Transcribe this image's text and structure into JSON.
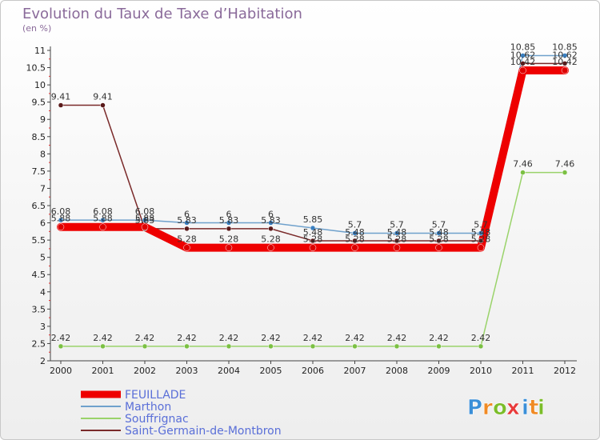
{
  "title": "Evolution du Taux de Taxe d’Habitation",
  "unit": "(en %)",
  "logo": {
    "letters": [
      "P",
      "r",
      "o",
      "x",
      "i",
      "t",
      "i"
    ],
    "colors": [
      "#3a8fd8",
      "#f08a24",
      "#7bbd2a",
      "#e83a3a",
      "#3a8fd8",
      "#f08a24",
      "#7bbd2a"
    ]
  },
  "chart_data": {
    "type": "line",
    "x": [
      2000,
      2001,
      2002,
      2003,
      2004,
      2005,
      2006,
      2007,
      2008,
      2009,
      2010,
      2011,
      2012
    ],
    "ylim": [
      2,
      11
    ],
    "yticks": [
      2,
      2.5,
      3,
      3.5,
      4,
      4.5,
      5,
      5.5,
      6,
      6.5,
      7,
      7.5,
      8,
      8.5,
      9,
      9.5,
      10,
      10.5,
      11
    ],
    "ytick_labels": [
      "2",
      "2.5",
      "3",
      "3.5",
      "4",
      "4.5",
      "5",
      "5.5",
      "6",
      "6.5",
      "7",
      "7.5",
      "8",
      "8.5",
      "9",
      "9.5",
      "10",
      "10.5",
      "11"
    ],
    "grid": false,
    "legend_position": "bottom-left",
    "series": [
      {
        "name": "FEUILLADE",
        "color": "#ee0000",
        "values": [
          5.88,
          5.88,
          5.88,
          5.28,
          5.28,
          5.28,
          5.28,
          5.28,
          5.28,
          5.28,
          5.28,
          10.42,
          10.42
        ],
        "labels": [
          "5.88",
          "5.88",
          "5.88",
          "5.28",
          "5.28",
          "5.28",
          "5.28",
          "5.28",
          "5.28",
          "5.28",
          "5.28",
          "10.42",
          "10.42"
        ]
      },
      {
        "name": "Marthon",
        "color": "#6fa1cc",
        "values": [
          6.08,
          6.08,
          6.08,
          6,
          6,
          6,
          5.85,
          5.7,
          5.7,
          5.7,
          5.7,
          10.85,
          10.85
        ],
        "labels": [
          "6.08",
          "6.08",
          "6.08",
          "6",
          "6",
          "6",
          "5.85",
          "5.7",
          "5.7",
          "5.7",
          "5.7",
          "10.85",
          "10.85"
        ]
      },
      {
        "name": "Souffrignac",
        "color": "#9ad36a",
        "values": [
          2.42,
          2.42,
          2.42,
          2.42,
          2.42,
          2.42,
          2.42,
          2.42,
          2.42,
          2.42,
          2.42,
          7.46,
          7.46
        ],
        "labels": [
          "2.42",
          "2.42",
          "2.42",
          "2.42",
          "2.42",
          "2.42",
          "2.42",
          "2.42",
          "2.42",
          "2.42",
          "2.42",
          "7.46",
          "7.46"
        ]
      },
      {
        "name": "Saint-Germain-de-Montbron",
        "color": "#7a2a2a",
        "values": [
          9.41,
          9.41,
          5.83,
          5.83,
          5.83,
          5.83,
          5.48,
          5.48,
          5.48,
          5.48,
          5.48,
          10.62,
          10.62
        ],
        "labels": [
          "9.41",
          "9.41",
          "5.83",
          "5.83",
          "5.83",
          "5.83",
          "5.48",
          "5.48",
          "5.48",
          "5.48",
          "5.48",
          "10.62",
          "10.62"
        ]
      }
    ]
  }
}
